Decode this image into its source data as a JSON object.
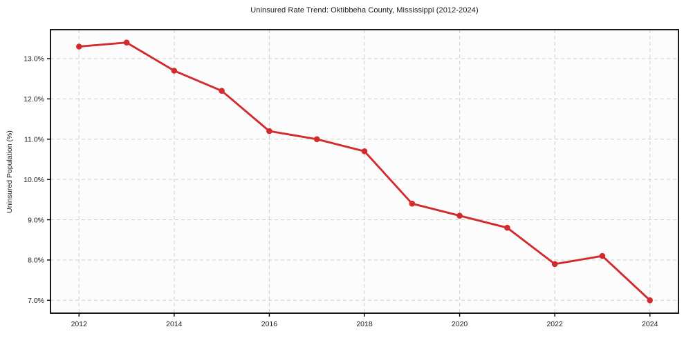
{
  "chart_data": {
    "type": "line",
    "title": "Uninsured Rate Trend: Oktibbeha County, Mississippi (2012-2024)",
    "xlabel": "",
    "ylabel": "Uninsured Population (%)",
    "x": [
      2012,
      2013,
      2014,
      2015,
      2016,
      2017,
      2018,
      2019,
      2020,
      2021,
      2022,
      2023,
      2024
    ],
    "series": [
      {
        "name": "uninsured-rate",
        "values": [
          13.3,
          13.4,
          12.7,
          12.2,
          11.2,
          11.0,
          10.7,
          9.4,
          9.1,
          8.8,
          7.9,
          8.1,
          7.0
        ]
      }
    ],
    "x_ticks": [
      2012,
      2014,
      2016,
      2018,
      2020,
      2022,
      2024
    ],
    "x_tick_labels": [
      "2012",
      "2014",
      "2016",
      "2018",
      "2020",
      "2022",
      "2024"
    ],
    "y_ticks": [
      7.0,
      8.0,
      9.0,
      10.0,
      11.0,
      12.0,
      13.0
    ],
    "y_tick_labels": [
      "7.0%",
      "8.0%",
      "9.0%",
      "10.0%",
      "11.0%",
      "12.0%",
      "13.0%"
    ],
    "xlim": [
      2011.4,
      2024.6
    ],
    "ylim": [
      6.68,
      13.72
    ],
    "grid": true,
    "grid_style": "dashed",
    "legend": "none",
    "marker": "circle"
  },
  "colors": {
    "line": "#d32b2d",
    "marker": "#d32b2d",
    "grid": "#cfcfcf",
    "spine": "#000000",
    "tick_text": "#1a1a1a",
    "plot_bg": "#fcfcfc",
    "figure_bg": "#ffffff"
  }
}
